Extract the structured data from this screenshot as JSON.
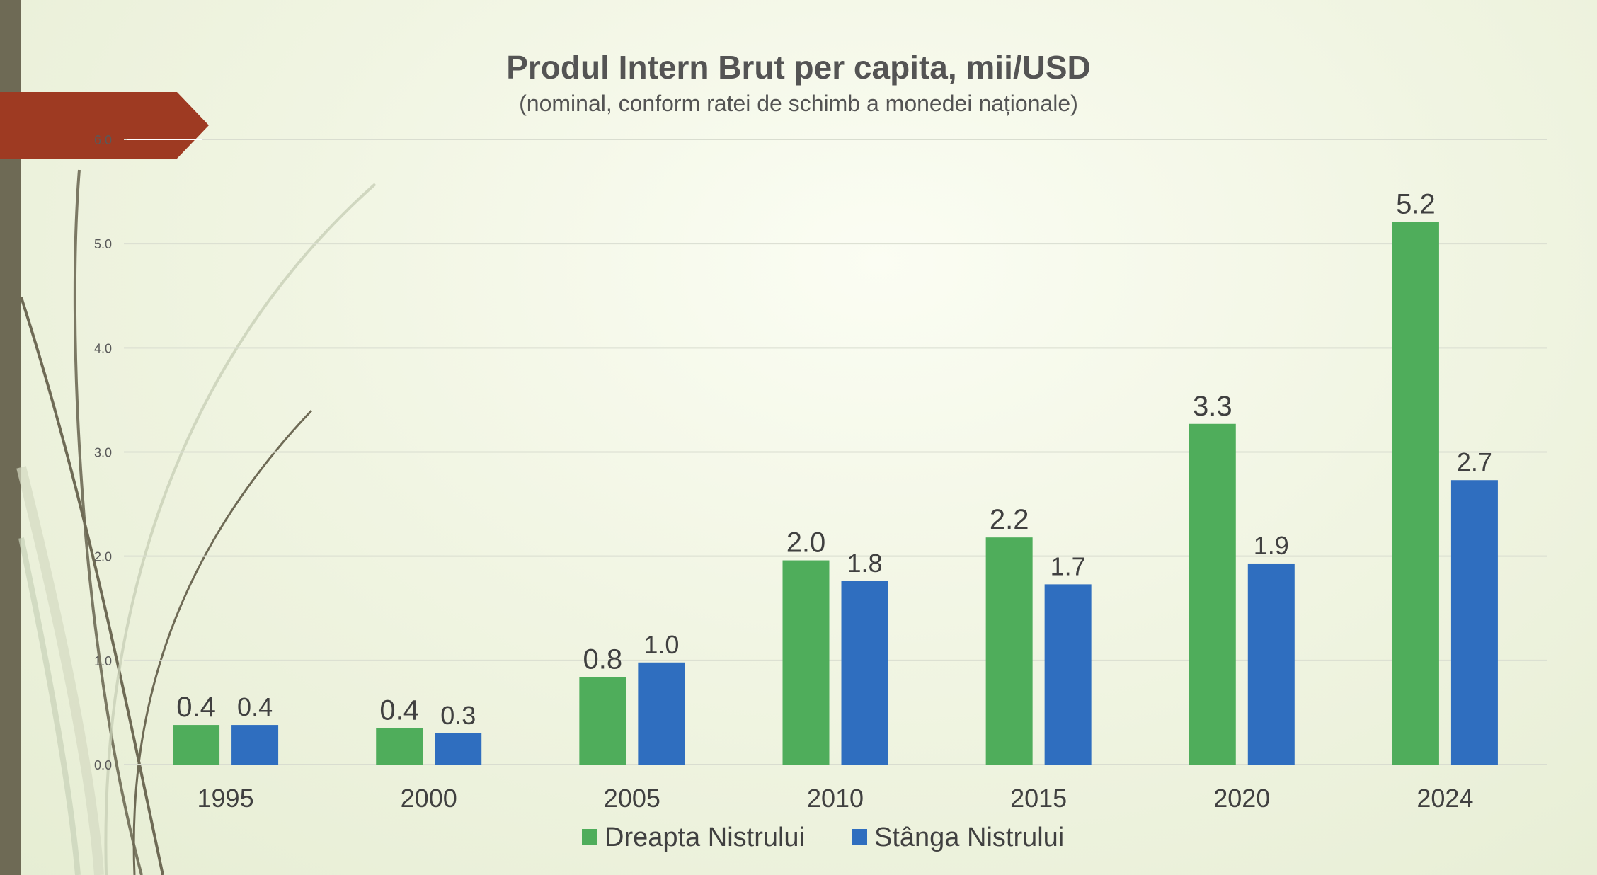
{
  "chart_data": {
    "type": "bar",
    "title": "Produl Intern Brut per capita, mii/USD",
    "subtitle": "(nominal, conform ratei de schimb a monedei naționale)",
    "categories": [
      "1995",
      "2000",
      "2005",
      "2010",
      "2015",
      "2020",
      "2024"
    ],
    "series": [
      {
        "name": "Dreapta Nistrului",
        "values": [
          0.4,
          0.4,
          0.8,
          2.0,
          2.2,
          3.3,
          5.2
        ],
        "plot_values": [
          0.38,
          0.35,
          0.84,
          1.96,
          2.18,
          3.27,
          5.21
        ],
        "color": "#4fad5b"
      },
      {
        "name": "Stânga Nistrului",
        "values": [
          0.4,
          0.3,
          1.0,
          1.8,
          1.7,
          1.9,
          2.7
        ],
        "plot_values": [
          0.38,
          0.3,
          0.98,
          1.76,
          1.73,
          1.93,
          2.73
        ],
        "color": "#2f6ebf"
      }
    ],
    "yticks": [
      "0.0",
      "1.0",
      "2.0",
      "3.0",
      "4.0",
      "5.0",
      "6.0"
    ],
    "ylim": [
      0,
      6
    ],
    "xlabel": "",
    "ylabel": "",
    "grid": true,
    "legend_position": "bottom"
  },
  "decor": {
    "accent_color": "#9e3a22",
    "rail_color": "#6e6a55"
  }
}
